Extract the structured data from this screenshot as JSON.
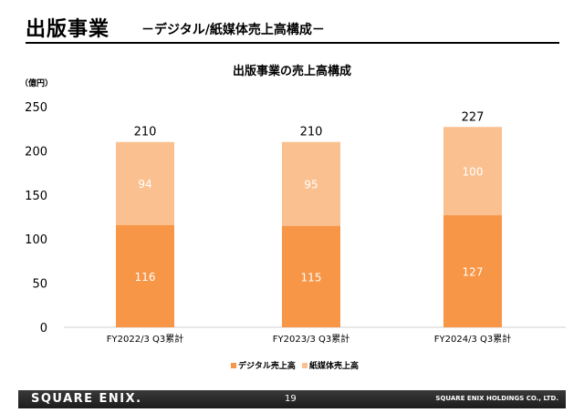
{
  "slide": {
    "title": "出版事業",
    "subtitle": "－デジタル/紙媒体売上高構成－"
  },
  "footer": {
    "logo": "SQUARE ENIX.",
    "page_number": "19",
    "company": "SQUARE ENIX HOLDINGS CO., LTD."
  },
  "colors": {
    "digital": "#F79646",
    "print": "#FAC090"
  },
  "chart_data": {
    "type": "bar",
    "stacked": true,
    "title": "出版事業の売上高構成",
    "ylabel": "（億円）",
    "xlabel": "",
    "ylim": [
      0,
      250
    ],
    "yticks": [
      0,
      50,
      100,
      150,
      200,
      250
    ],
    "grid": false,
    "legend_position": "bottom",
    "categories": [
      "FY2022/3 Q3累計",
      "FY2023/3 Q3累計",
      "FY2024/3 Q3累計"
    ],
    "series": [
      {
        "name": "デジタル売上高",
        "values": [
          116,
          115,
          127
        ]
      },
      {
        "name": "紙媒体売上高",
        "values": [
          94,
          95,
          100
        ]
      }
    ],
    "totals": [
      210,
      210,
      227
    ]
  }
}
